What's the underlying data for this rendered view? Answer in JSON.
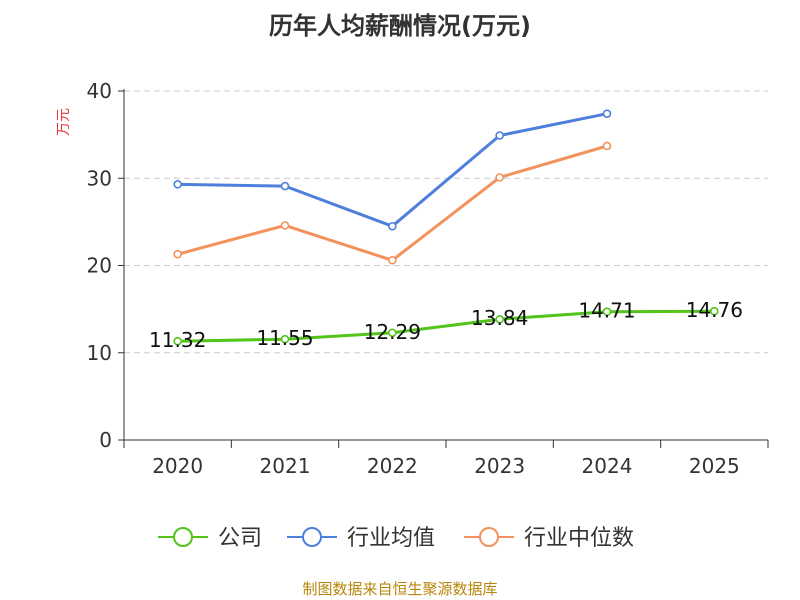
{
  "title": "历年人均薪酬情况(万元)",
  "source_note": "制图数据来自恒生聚源数据库",
  "chart_data": {
    "type": "line",
    "title": "历年人均薪酬情况(万元)",
    "ylabel": "万元",
    "ylim": [
      0,
      40
    ],
    "yticks": [
      0,
      10,
      20,
      30,
      40
    ],
    "categories": [
      "2020",
      "2021",
      "2022",
      "2023",
      "2024",
      "2025"
    ],
    "series": [
      {
        "name": "公司",
        "color": "#52c41a",
        "values": [
          11.32,
          11.55,
          12.29,
          13.84,
          14.71,
          14.76
        ],
        "labels": [
          "11.32",
          "11.55",
          "12.29",
          "13.84",
          "14.71",
          "14.76"
        ]
      },
      {
        "name": "行业均值",
        "color": "#4e7fdc",
        "values": [
          29.3,
          29.1,
          24.5,
          34.9,
          37.4,
          null
        ]
      },
      {
        "name": "行业中位数",
        "color": "#f2925c",
        "values": [
          21.3,
          24.6,
          20.6,
          30.1,
          33.7,
          null
        ]
      }
    ],
    "legend_position": "bottom"
  }
}
